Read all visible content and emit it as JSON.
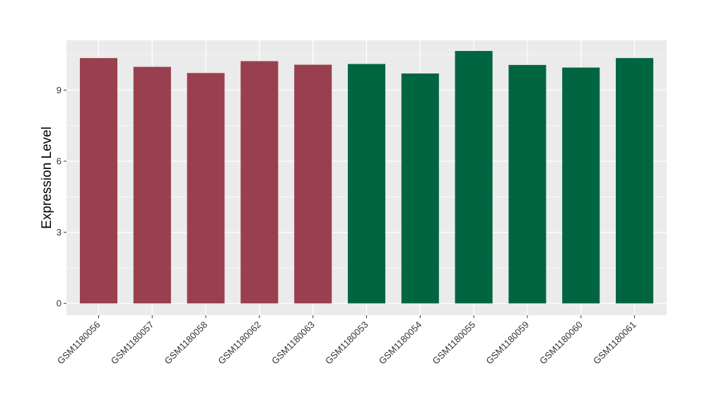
{
  "chart_data": {
    "type": "bar",
    "title": "",
    "xlabel": "",
    "ylabel": "Expression Level",
    "ylim": [
      -0.5,
      11.1
    ],
    "yticks": [
      0,
      3,
      6,
      9
    ],
    "grid": true,
    "categories": [
      "GSM1180056",
      "GSM1180057",
      "GSM1180058",
      "GSM1180062",
      "GSM1180063",
      "GSM1180053",
      "GSM1180054",
      "GSM1180055",
      "GSM1180059",
      "GSM1180060",
      "GSM1180061"
    ],
    "values": [
      10.35,
      9.98,
      9.72,
      10.22,
      10.07,
      10.1,
      9.7,
      10.65,
      10.06,
      9.95,
      10.35
    ],
    "bar_colors": [
      "#98404f",
      "#98404f",
      "#98404f",
      "#98404f",
      "#98404f",
      "#006642",
      "#006642",
      "#006642",
      "#006642",
      "#006642",
      "#006642"
    ],
    "panel_background": "#ebebeb",
    "gridline_color": "#ffffff"
  }
}
